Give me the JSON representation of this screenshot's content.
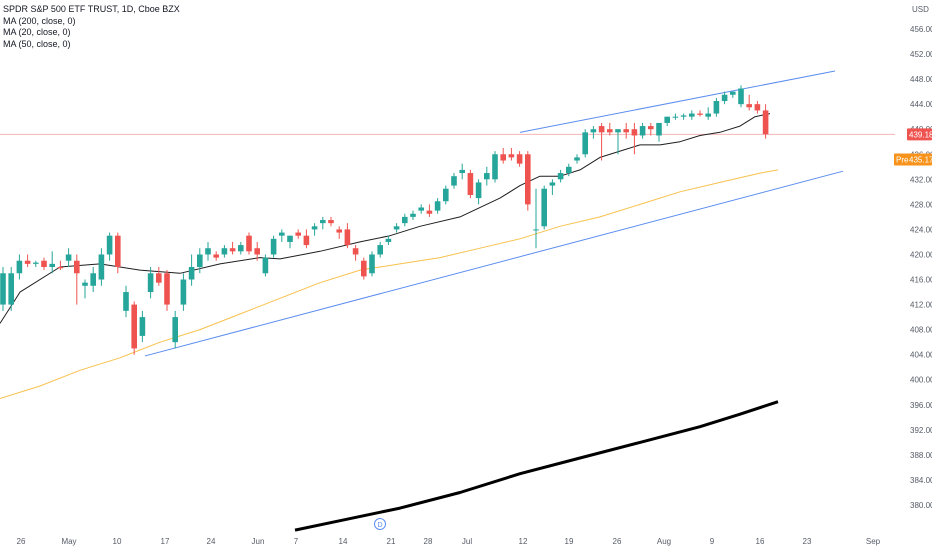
{
  "header": {
    "symbol": "SPDR S&P 500 ETF TRUST, 1D, Cboe BZX",
    "indicators": [
      "MA (200, close, 0)",
      "MA (20, close, 0)",
      "MA (50, close, 0)"
    ]
  },
  "colors": {
    "up": "#26a69a",
    "down": "#ef5350",
    "ma20": "#1e1e1e",
    "ma50": "#f7c14d",
    "ma200": "#000000",
    "trendline": "#5b8def",
    "price_line": "#f4b6b4",
    "pre_badge": "#f7931a",
    "axis_text": "#555b66"
  },
  "chart_data": {
    "type": "candlestick",
    "ylim": [
      376,
      460
    ],
    "y_ticks": [
      380,
      384,
      388,
      392,
      396,
      400,
      404,
      408,
      412,
      416,
      420,
      424,
      428,
      432,
      436,
      440,
      444,
      448,
      452,
      456
    ],
    "axis_top_label": "USD",
    "x_ticks": [
      "26",
      "May",
      "10",
      "17",
      "24",
      "Jun",
      "7",
      "14",
      "21",
      "28",
      "Jul",
      "12",
      "19",
      "26",
      "Aug",
      "9",
      "16",
      "23",
      "Sep"
    ],
    "current_price_label": "439.18",
    "current_price": 439.18,
    "premarket_label": "Pre",
    "premarket_price_label": "435.17",
    "premarket_price": 435.17,
    "event_marker": "D",
    "candles": [
      {
        "o": 412,
        "h": 418,
        "l": 411,
        "c": 417
      },
      {
        "o": 412,
        "h": 418,
        "l": 411,
        "c": 417
      },
      {
        "o": 417,
        "h": 420,
        "l": 416,
        "c": 419
      },
      {
        "o": 419,
        "h": 420,
        "l": 418,
        "c": 418.5
      },
      {
        "o": 418.5,
        "h": 419,
        "l": 418,
        "c": 418.7
      },
      {
        "o": 419,
        "h": 419.5,
        "l": 417.5,
        "c": 418
      },
      {
        "o": 418,
        "h": 420.5,
        "l": 417,
        "c": 418.5
      },
      {
        "o": 418,
        "h": 419,
        "l": 417.5,
        "c": 417.8
      },
      {
        "o": 419,
        "h": 421,
        "l": 418,
        "c": 420
      },
      {
        "o": 419,
        "h": 420,
        "l": 412,
        "c": 417
      },
      {
        "o": 415,
        "h": 416,
        "l": 413,
        "c": 415.5
      },
      {
        "o": 415,
        "h": 418,
        "l": 414,
        "c": 417
      },
      {
        "o": 416,
        "h": 421,
        "l": 415,
        "c": 420
      },
      {
        "o": 420,
        "h": 423.5,
        "l": 419,
        "c": 423
      },
      {
        "o": 423,
        "h": 423.5,
        "l": 417,
        "c": 418
      },
      {
        "o": 411,
        "h": 415,
        "l": 410,
        "c": 414
      },
      {
        "o": 412,
        "h": 412.5,
        "l": 404,
        "c": 405
      },
      {
        "o": 407,
        "h": 411,
        "l": 406,
        "c": 410
      },
      {
        "o": 414,
        "h": 418,
        "l": 413,
        "c": 417
      },
      {
        "o": 417,
        "h": 418,
        "l": 415,
        "c": 415.5
      },
      {
        "o": 417,
        "h": 417.5,
        "l": 411,
        "c": 412
      },
      {
        "o": 406,
        "h": 411,
        "l": 405,
        "c": 410
      },
      {
        "o": 412,
        "h": 417,
        "l": 411,
        "c": 416
      },
      {
        "o": 416,
        "h": 420,
        "l": 415,
        "c": 418
      },
      {
        "o": 418,
        "h": 421,
        "l": 417,
        "c": 420
      },
      {
        "o": 420,
        "h": 422,
        "l": 419,
        "c": 421
      },
      {
        "o": 420,
        "h": 420.5,
        "l": 419,
        "c": 419.5
      },
      {
        "o": 420,
        "h": 421.5,
        "l": 419.5,
        "c": 421
      },
      {
        "o": 421,
        "h": 422,
        "l": 420,
        "c": 420.5
      },
      {
        "o": 420.5,
        "h": 422,
        "l": 420,
        "c": 421.5
      },
      {
        "o": 423,
        "h": 423.5,
        "l": 420,
        "c": 420.5
      },
      {
        "o": 421,
        "h": 422,
        "l": 419,
        "c": 420
      },
      {
        "o": 417,
        "h": 420,
        "l": 416.5,
        "c": 419.5
      },
      {
        "o": 420,
        "h": 423,
        "l": 419.5,
        "c": 422.5
      },
      {
        "o": 423,
        "h": 424,
        "l": 422,
        "c": 423.5
      },
      {
        "o": 422,
        "h": 423,
        "l": 421,
        "c": 423
      },
      {
        "o": 423.5,
        "h": 424,
        "l": 422.5,
        "c": 423
      },
      {
        "o": 423,
        "h": 424,
        "l": 421,
        "c": 421.5
      },
      {
        "o": 424,
        "h": 425,
        "l": 423,
        "c": 424.5
      },
      {
        "o": 425,
        "h": 426,
        "l": 424,
        "c": 425.5
      },
      {
        "o": 425.5,
        "h": 426,
        "l": 424.5,
        "c": 425
      },
      {
        "o": 424,
        "h": 424.5,
        "l": 422.5,
        "c": 423.5
      },
      {
        "o": 424,
        "h": 425,
        "l": 421,
        "c": 421.5
      },
      {
        "o": 421,
        "h": 421.5,
        "l": 419,
        "c": 420
      },
      {
        "o": 419,
        "h": 419.5,
        "l": 416,
        "c": 416.5
      },
      {
        "o": 417,
        "h": 420.5,
        "l": 416.5,
        "c": 420
      },
      {
        "o": 420,
        "h": 422,
        "l": 419.5,
        "c": 421.5
      },
      {
        "o": 422,
        "h": 423,
        "l": 421.5,
        "c": 422.5
      },
      {
        "o": 424,
        "h": 425,
        "l": 423.5,
        "c": 424.5
      },
      {
        "o": 425,
        "h": 426.5,
        "l": 424.5,
        "c": 426
      },
      {
        "o": 426,
        "h": 427,
        "l": 425.5,
        "c": 426.5
      },
      {
        "o": 427,
        "h": 428,
        "l": 426.5,
        "c": 427.5
      },
      {
        "o": 427,
        "h": 428,
        "l": 426,
        "c": 426.5
      },
      {
        "o": 427,
        "h": 429,
        "l": 426.5,
        "c": 428.5
      },
      {
        "o": 428.5,
        "h": 431,
        "l": 428,
        "c": 430.5
      },
      {
        "o": 431,
        "h": 433,
        "l": 430.5,
        "c": 432.5
      },
      {
        "o": 433,
        "h": 434.5,
        "l": 432,
        "c": 433.5
      },
      {
        "o": 433,
        "h": 433.5,
        "l": 429,
        "c": 429.5
      },
      {
        "o": 429,
        "h": 432,
        "l": 428,
        "c": 431.5
      },
      {
        "o": 432,
        "h": 434,
        "l": 431,
        "c": 433
      },
      {
        "o": 432,
        "h": 436.5,
        "l": 431.5,
        "c": 436
      },
      {
        "o": 436,
        "h": 437,
        "l": 434.5,
        "c": 435
      },
      {
        "o": 436,
        "h": 437,
        "l": 435,
        "c": 435.5
      },
      {
        "o": 436,
        "h": 436.5,
        "l": 434,
        "c": 434.5
      },
      {
        "o": 436,
        "h": 436.5,
        "l": 427,
        "c": 428
      },
      {
        "o": 424,
        "h": 430.5,
        "l": 421,
        "c": 424
      },
      {
        "o": 424.5,
        "h": 431,
        "l": 424,
        "c": 430.5
      },
      {
        "o": 431,
        "h": 432,
        "l": 429.5,
        "c": 431.5
      },
      {
        "o": 432,
        "h": 433.5,
        "l": 431.5,
        "c": 433
      },
      {
        "o": 433,
        "h": 434.5,
        "l": 432.5,
        "c": 434
      },
      {
        "o": 435,
        "h": 436,
        "l": 434.5,
        "c": 435.5
      },
      {
        "o": 436,
        "h": 440,
        "l": 435.5,
        "c": 439.5
      },
      {
        "o": 439.5,
        "h": 440.5,
        "l": 438.5,
        "c": 440
      },
      {
        "o": 440.5,
        "h": 441,
        "l": 435,
        "c": 439.5
      },
      {
        "o": 440,
        "h": 441,
        "l": 439,
        "c": 439.5
      },
      {
        "o": 439.5,
        "h": 440,
        "l": 436,
        "c": 440
      },
      {
        "o": 440,
        "h": 441,
        "l": 438.5,
        "c": 439.5
      },
      {
        "o": 440,
        "h": 441,
        "l": 436,
        "c": 439
      },
      {
        "o": 439,
        "h": 441,
        "l": 438.5,
        "c": 440.5
      },
      {
        "o": 440.5,
        "h": 441,
        "l": 439,
        "c": 440
      },
      {
        "o": 439,
        "h": 441,
        "l": 438,
        "c": 441
      },
      {
        "o": 441,
        "h": 442,
        "l": 440.5,
        "c": 442
      },
      {
        "o": 442,
        "h": 442.5,
        "l": 441.5,
        "c": 442
      },
      {
        "o": 442,
        "h": 442.5,
        "l": 441.5,
        "c": 442.2
      },
      {
        "o": 442,
        "h": 443,
        "l": 441.5,
        "c": 442.5
      },
      {
        "o": 442.5,
        "h": 443,
        "l": 442,
        "c": 442.3
      },
      {
        "o": 442,
        "h": 443.5,
        "l": 441.5,
        "c": 442.5
      },
      {
        "o": 442.5,
        "h": 445,
        "l": 442,
        "c": 444.5
      },
      {
        "o": 444.5,
        "h": 446,
        "l": 444,
        "c": 445.5
      },
      {
        "o": 445.5,
        "h": 446,
        "l": 445,
        "c": 446
      },
      {
        "o": 444,
        "h": 447,
        "l": 443.5,
        "c": 446.5
      },
      {
        "o": 444,
        "h": 445.5,
        "l": 443,
        "c": 443.5
      },
      {
        "o": 444,
        "h": 444.5,
        "l": 442.5,
        "c": 443
      },
      {
        "o": 443,
        "h": 444,
        "l": 438.5,
        "c": 439.2
      }
    ],
    "ma20": [
      [
        0,
        409
      ],
      [
        20,
        414
      ],
      [
        60,
        418
      ],
      [
        100,
        418.5
      ],
      [
        140,
        417.5
      ],
      [
        180,
        417
      ],
      [
        220,
        418.5
      ],
      [
        260,
        419.5
      ],
      [
        280,
        419.3
      ],
      [
        320,
        420.5
      ],
      [
        360,
        422
      ],
      [
        390,
        423
      ],
      [
        420,
        424.5
      ],
      [
        460,
        426
      ],
      [
        500,
        429
      ],
      [
        520,
        431
      ],
      [
        540,
        432.5
      ],
      [
        560,
        432.5
      ],
      [
        580,
        433.5
      ],
      [
        600,
        435.5
      ],
      [
        620,
        436.5
      ],
      [
        640,
        437.5
      ],
      [
        660,
        437.5
      ],
      [
        680,
        438
      ],
      [
        700,
        439
      ],
      [
        720,
        439.5
      ],
      [
        740,
        440.5
      ],
      [
        755,
        442
      ],
      [
        770,
        442.5
      ]
    ],
    "ma50": [
      [
        0,
        397
      ],
      [
        40,
        399
      ],
      [
        80,
        401.5
      ],
      [
        120,
        403.5
      ],
      [
        160,
        406
      ],
      [
        200,
        408
      ],
      [
        240,
        410.5
      ],
      [
        280,
        413
      ],
      [
        320,
        415.5
      ],
      [
        360,
        417.5
      ],
      [
        400,
        418.5
      ],
      [
        440,
        419.5
      ],
      [
        480,
        421
      ],
      [
        520,
        422.5
      ],
      [
        560,
        424.5
      ],
      [
        600,
        426
      ],
      [
        640,
        428
      ],
      [
        680,
        430
      ],
      [
        720,
        431.5
      ],
      [
        760,
        433
      ],
      [
        778,
        433.5
      ]
    ],
    "ma200": [
      [
        295,
        376
      ],
      [
        340,
        377.5
      ],
      [
        400,
        379.5
      ],
      [
        460,
        382
      ],
      [
        520,
        385
      ],
      [
        580,
        387.5
      ],
      [
        640,
        390
      ],
      [
        700,
        392.5
      ],
      [
        740,
        394.5
      ],
      [
        778,
        396.5
      ]
    ],
    "trendlines": [
      {
        "name": "upper",
        "x1": 520,
        "y1": 439.5,
        "x2": 835,
        "y2": 449.3
      },
      {
        "name": "lower",
        "x1": 145,
        "y1": 403.8,
        "x2": 843,
        "y2": 433.3
      }
    ]
  }
}
